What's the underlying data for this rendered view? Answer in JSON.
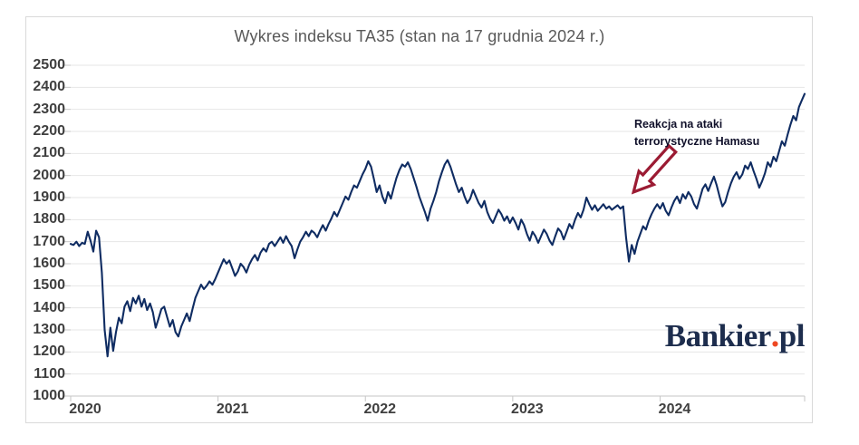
{
  "chart_data": {
    "type": "line",
    "title": "Wykres indeksu TA35 (stan na 17 grudnia 2024 r.)",
    "xlabel": "",
    "ylabel": "",
    "ylim": [
      1000,
      2500
    ],
    "x_range": [
      2020.0,
      2024.981
    ],
    "grid": true,
    "legend_position": "none",
    "y_ticks": [
      2500,
      2400,
      2300,
      2200,
      2100,
      2000,
      1900,
      1800,
      1700,
      1600,
      1500,
      1400,
      1300,
      1200,
      1100,
      1000
    ],
    "x_ticks": [
      {
        "t": 2020,
        "label": "2020"
      },
      {
        "t": 2021,
        "label": "2021"
      },
      {
        "t": 2022,
        "label": "2022"
      },
      {
        "t": 2023,
        "label": "2023"
      },
      {
        "t": 2024,
        "label": "2024"
      },
      {
        "t": 2025,
        "label": ""
      }
    ],
    "series": [
      {
        "name": "TA35",
        "start": 2020.0,
        "step": 0.0192308,
        "values": [
          1690,
          1685,
          1700,
          1680,
          1695,
          1690,
          1745,
          1705,
          1655,
          1750,
          1720,
          1560,
          1300,
          1180,
          1310,
          1205,
          1290,
          1355,
          1330,
          1405,
          1430,
          1385,
          1445,
          1420,
          1455,
          1405,
          1440,
          1390,
          1420,
          1380,
          1310,
          1350,
          1395,
          1405,
          1360,
          1315,
          1345,
          1290,
          1270,
          1315,
          1345,
          1375,
          1340,
          1395,
          1445,
          1475,
          1505,
          1485,
          1500,
          1520,
          1505,
          1530,
          1560,
          1590,
          1620,
          1600,
          1615,
          1580,
          1545,
          1565,
          1600,
          1585,
          1560,
          1595,
          1620,
          1640,
          1615,
          1650,
          1670,
          1655,
          1690,
          1700,
          1680,
          1700,
          1720,
          1695,
          1725,
          1700,
          1680,
          1625,
          1665,
          1700,
          1720,
          1745,
          1725,
          1750,
          1740,
          1720,
          1750,
          1775,
          1750,
          1780,
          1805,
          1835,
          1815,
          1845,
          1875,
          1905,
          1890,
          1925,
          1955,
          1945,
          1975,
          2005,
          2030,
          2065,
          2040,
          1985,
          1925,
          1955,
          1905,
          1875,
          1925,
          1895,
          1945,
          1990,
          2025,
          2050,
          2040,
          2060,
          2030,
          1990,
          1950,
          1905,
          1870,
          1835,
          1795,
          1850,
          1885,
          1925,
          1975,
          2015,
          2050,
          2070,
          2040,
          2000,
          1960,
          1925,
          1945,
          1905,
          1875,
          1895,
          1935,
          1905,
          1875,
          1855,
          1885,
          1835,
          1805,
          1785,
          1815,
          1845,
          1825,
          1795,
          1815,
          1785,
          1810,
          1785,
          1755,
          1800,
          1775,
          1735,
          1705,
          1745,
          1725,
          1695,
          1725,
          1755,
          1735,
          1705,
          1685,
          1725,
          1760,
          1745,
          1710,
          1745,
          1780,
          1760,
          1800,
          1830,
          1810,
          1845,
          1900,
          1870,
          1845,
          1865,
          1840,
          1855,
          1870,
          1850,
          1860,
          1845,
          1855,
          1865,
          1850,
          1860,
          1720,
          1610,
          1685,
          1645,
          1700,
          1735,
          1770,
          1755,
          1795,
          1825,
          1850,
          1870,
          1850,
          1875,
          1840,
          1820,
          1855,
          1885,
          1905,
          1875,
          1915,
          1895,
          1925,
          1905,
          1870,
          1850,
          1895,
          1940,
          1960,
          1930,
          1965,
          1995,
          1955,
          1905,
          1860,
          1880,
          1925,
          1965,
          1995,
          2015,
          1985,
          2005,
          2045,
          2030,
          2060,
          2020,
          1985,
          1945,
          1975,
          2010,
          2060,
          2040,
          2085,
          2065,
          2110,
          2155,
          2135,
          2185,
          2230,
          2270,
          2250,
          2310,
          2340,
          2370
        ]
      }
    ],
    "annotation": {
      "lines": [
        "Reakcja na ataki",
        "terrorystyczne Hamasu"
      ],
      "arrow_target": {
        "t": 2023.82,
        "value": 1925
      }
    }
  },
  "colors": {
    "line": "#0f2c62",
    "grid": "#e6e6e6",
    "axis": "#c6c6c6",
    "title": "#595959",
    "tick_label": "#3f3f3f",
    "annotation_text": "#10102a",
    "arrow": "#9b1b33",
    "logo_navy": "#1d2d4d",
    "logo_dot": "#ee4823",
    "frame": "#d9d9d9"
  },
  "logo": {
    "part1": "Bankier",
    "dot": ".",
    "part2": "pl"
  }
}
